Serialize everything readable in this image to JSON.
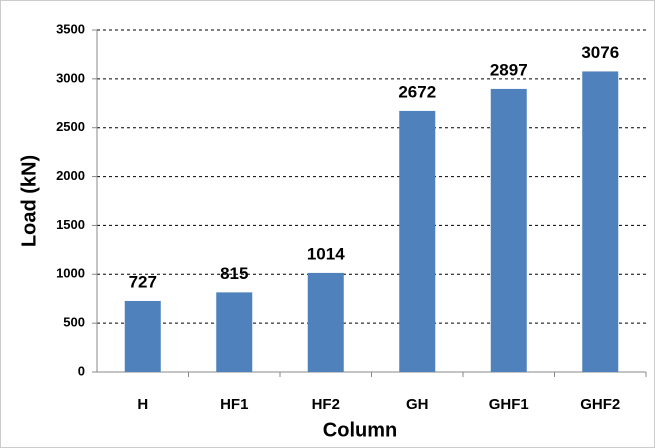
{
  "chart_data": {
    "type": "bar",
    "categories": [
      "H",
      "HF1",
      "HF2",
      "GH",
      "GHF1",
      "GHF2"
    ],
    "values": [
      727,
      815,
      1014,
      2672,
      2897,
      3076
    ],
    "color": "#4f81bd",
    "x_label": "Column",
    "y_label": "Load (kN)",
    "ylim": [
      0,
      3500
    ],
    "yticks": [
      0,
      500,
      1000,
      1500,
      2000,
      2500,
      3000,
      3500
    ],
    "grid": true
  }
}
